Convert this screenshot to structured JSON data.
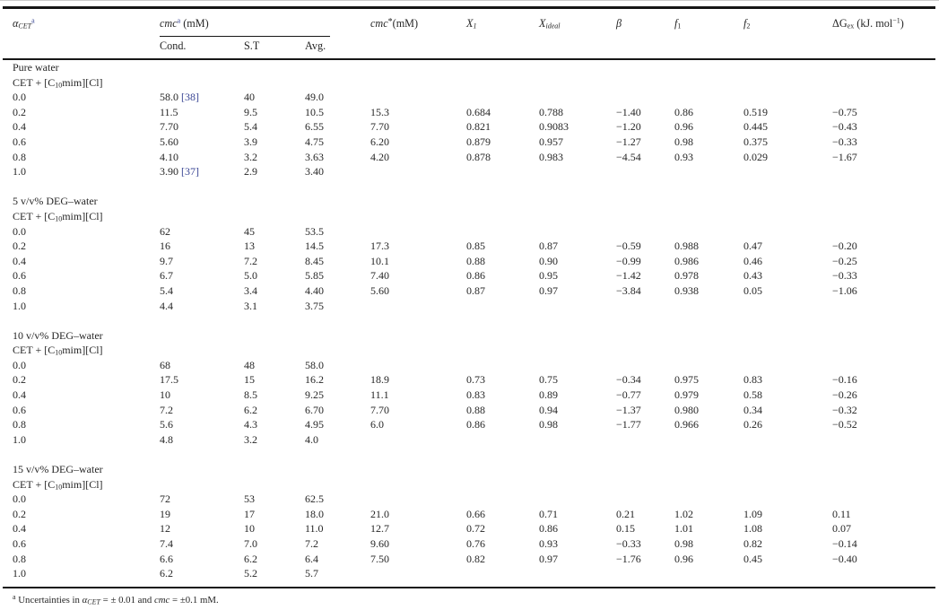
{
  "colors": {
    "text": "#262626",
    "citation_blue": "#3a4694",
    "rule_black": "#161616"
  },
  "table": {
    "header": {
      "alpha": {
        "base": "α",
        "sub": "CET",
        "sup": "a"
      },
      "cmc": {
        "base": "cmc",
        "sup": "a",
        "unit": " (mM)"
      },
      "sub_cols": {
        "cond": "Cond.",
        "st": "S.T",
        "avg": "Avg."
      },
      "cmc_star": {
        "base": "cmc",
        "star": "*",
        "unit": "(mM)"
      },
      "x1": {
        "base": "X",
        "sub": "1"
      },
      "x_ideal": {
        "base": "X",
        "sub": "ideal"
      },
      "beta": "β",
      "f1": {
        "base": "f",
        "sub": "1"
      },
      "f2": {
        "base": "f",
        "sub": "2"
      },
      "dg_ex": {
        "base": "ΔG",
        "sub": "ex",
        "unit_pre": " (kJ. mol",
        "exp": "−1",
        "unit_post": ")"
      }
    },
    "formula": {
      "pre": "CET + [C",
      "sub": "10",
      "post": "mim][Cl]"
    },
    "sections": [
      {
        "title": "Pure water",
        "rows": [
          [
            "0.0",
            {
              "text": "58.0",
              "ref": "[38]"
            },
            "40",
            "49.0",
            "",
            "",
            "",
            "",
            "",
            "",
            ""
          ],
          [
            "0.2",
            "11.5",
            "9.5",
            "10.5",
            "15.3",
            "0.684",
            "0.788",
            "−1.40",
            "0.86",
            "0.519",
            "−0.75"
          ],
          [
            "0.4",
            "7.70",
            "5.4",
            "6.55",
            "7.70",
            "0.821",
            "0.9083",
            "−1.20",
            "0.96",
            "0.445",
            "−0.43"
          ],
          [
            "0.6",
            "5.60",
            "3.9",
            "4.75",
            "6.20",
            "0.879",
            "0.957",
            "−1.27",
            "0.98",
            "0.375",
            "−0.33"
          ],
          [
            "0.8",
            "4.10",
            "3.2",
            "3.63",
            "4.20",
            "0.878",
            "0.983",
            "−4.54",
            "0.93",
            "0.029",
            "−1.67"
          ],
          [
            "1.0",
            {
              "text": "3.90",
              "ref": "[37]"
            },
            "2.9",
            "3.40",
            "",
            "",
            "",
            "",
            "",
            "",
            ""
          ]
        ]
      },
      {
        "title": "5 v/v% DEG–water",
        "rows": [
          [
            "0.0",
            "62",
            "45",
            "53.5",
            "",
            "",
            "",
            "",
            "",
            "",
            ""
          ],
          [
            "0.2",
            "16",
            "13",
            "14.5",
            "17.3",
            "0.85",
            "0.87",
            "−0.59",
            "0.988",
            "0.47",
            "−0.20"
          ],
          [
            "0.4",
            "9.7",
            "7.2",
            "8.45",
            "10.1",
            "0.88",
            "0.90",
            "−0.99",
            "0.986",
            "0.46",
            "−0.25"
          ],
          [
            "0.6",
            "6.7",
            "5.0",
            "5.85",
            "7.40",
            "0.86",
            "0.95",
            "−1.42",
            "0.978",
            "0.43",
            "−0.33"
          ],
          [
            "0.8",
            "5.4",
            "3.4",
            "4.40",
            "5.60",
            "0.87",
            "0.97",
            "−3.84",
            "0.938",
            "0.05",
            "−1.06"
          ],
          [
            "1.0",
            "4.4",
            "3.1",
            "3.75",
            "",
            "",
            "",
            "",
            "",
            "",
            ""
          ]
        ]
      },
      {
        "title": "10 v/v% DEG–water",
        "rows": [
          [
            "0.0",
            "68",
            "48",
            "58.0",
            "",
            "",
            "",
            "",
            "",
            "",
            ""
          ],
          [
            "0.2",
            "17.5",
            "15",
            "16.2",
            "18.9",
            "0.73",
            "0.75",
            "−0.34",
            "0.975",
            "0.83",
            "−0.16"
          ],
          [
            "0.4",
            "10",
            "8.5",
            "9.25",
            "11.1",
            "0.83",
            "0.89",
            "−0.77",
            "0.979",
            "0.58",
            "−0.26"
          ],
          [
            "0.6",
            "7.2",
            "6.2",
            "6.70",
            "7.70",
            "0.88",
            "0.94",
            "−1.37",
            "0.980",
            "0.34",
            "−0.32"
          ],
          [
            "0.8",
            "5.6",
            "4.3",
            "4.95",
            "6.0",
            "0.86",
            "0.98",
            "−1.77",
            "0.966",
            "0.26",
            "−0.52"
          ],
          [
            "1.0",
            "4.8",
            "3.2",
            "4.0",
            "",
            "",
            "",
            "",
            "",
            "",
            ""
          ]
        ]
      },
      {
        "title": "15 v/v% DEG–water",
        "rows": [
          [
            "0.0",
            "72",
            "53",
            "62.5",
            "",
            "",
            "",
            "",
            "",
            "",
            ""
          ],
          [
            "0.2",
            "19",
            "17",
            "18.0",
            "21.0",
            "0.66",
            "0.71",
            "0.21",
            "1.02",
            "1.09",
            "0.11"
          ],
          [
            "0.4",
            "12",
            "10",
            "11.0",
            "12.7",
            "0.72",
            "0.86",
            "0.15",
            "1.01",
            "1.08",
            "0.07"
          ],
          [
            "0.6",
            "7.4",
            "7.0",
            "7.2",
            "9.60",
            "0.76",
            "0.93",
            "−0.33",
            "0.98",
            "0.82",
            "−0.14"
          ],
          [
            "0.8",
            "6.6",
            "6.2",
            "6.4",
            "7.50",
            "0.82",
            "0.97",
            "−1.76",
            "0.96",
            "0.45",
            "−0.40"
          ],
          [
            "1.0",
            "6.2",
            "5.2",
            "5.7",
            "",
            "",
            "",
            "",
            "",
            "",
            ""
          ]
        ]
      }
    ],
    "footnote": {
      "marker": "a",
      "pre": " Uncertainties in ",
      "alpha_sym": "α",
      "alpha_sub": "CET",
      "mid": " = ± 0.01 and ",
      "cmc": "cmc",
      "post": " = ±0.1 mM."
    }
  }
}
